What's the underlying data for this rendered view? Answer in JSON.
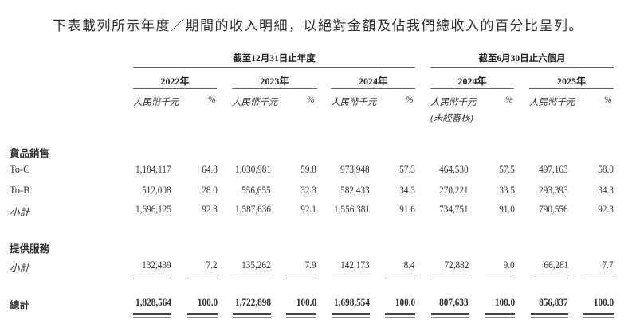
{
  "title": "下表載列所示年度／期間的收入明細，以絕對金額及佔我們總收入的百分比呈列。",
  "header": {
    "group_annual": "截至12月31日止年度",
    "group_interim": "截至6月30日止六個月",
    "years": [
      "2022年",
      "2023年",
      "2024年",
      "2024年",
      "2025年"
    ],
    "amount_label": "人民幣千元",
    "pct_label": "%",
    "unaudited_label": "(未經審核)"
  },
  "rows": [
    {
      "label": "貨品銷售",
      "type": "section",
      "values": []
    },
    {
      "label": "To-C",
      "type": "item",
      "values": [
        "1,184,117",
        "64.8",
        "1,030,981",
        "59.8",
        "973,948",
        "57.3",
        "464,530",
        "57.5",
        "497,163",
        "58.0"
      ]
    },
    {
      "label": "To-B",
      "type": "item",
      "values": [
        "512,008",
        "28.0",
        "556,655",
        "32.3",
        "582,433",
        "34.3",
        "270,221",
        "33.5",
        "293,393",
        "34.3"
      ]
    },
    {
      "label": "小計",
      "type": "subtotal",
      "values": [
        "1,696,125",
        "92.8",
        "1,587,636",
        "92.1",
        "1,556,381",
        "91.6",
        "734,751",
        "91.0",
        "790,556",
        "92.3"
      ]
    },
    {
      "label": "提供服務",
      "type": "section",
      "values": []
    },
    {
      "label": "小計",
      "type": "subtotal",
      "values": [
        "132,439",
        "7.2",
        "135,262",
        "7.9",
        "142,173",
        "8.4",
        "72,882",
        "9.0",
        "66,281",
        "7.7"
      ]
    },
    {
      "label": "總計",
      "type": "total",
      "values": [
        "1,828,564",
        "100.0",
        "1,722,898",
        "100.0",
        "1,698,554",
        "100.0",
        "807,633",
        "100.0",
        "856,837",
        "100.0"
      ]
    }
  ]
}
